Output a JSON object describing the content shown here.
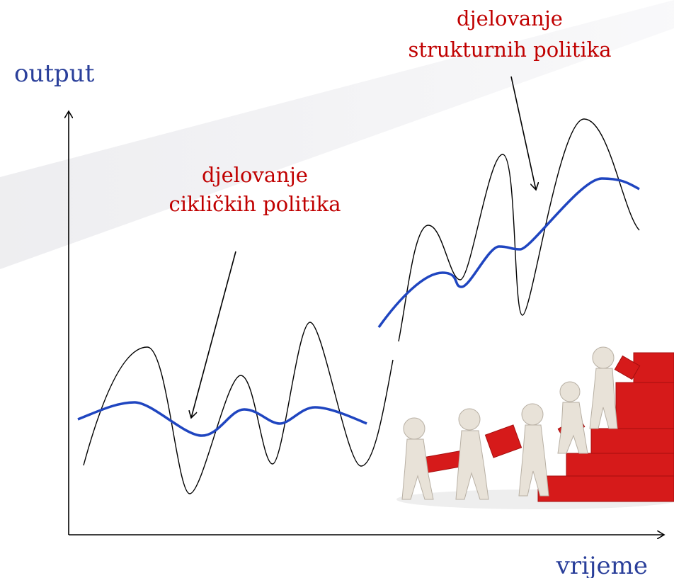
{
  "axes": {
    "y_label": "output",
    "x_label": "vrijeme"
  },
  "annotations": [
    {
      "lines": [
        "djelovanje",
        "cikličkih politika"
      ]
    },
    {
      "lines": [
        "djelovanje",
        "strukturnih politika"
      ]
    }
  ]
}
